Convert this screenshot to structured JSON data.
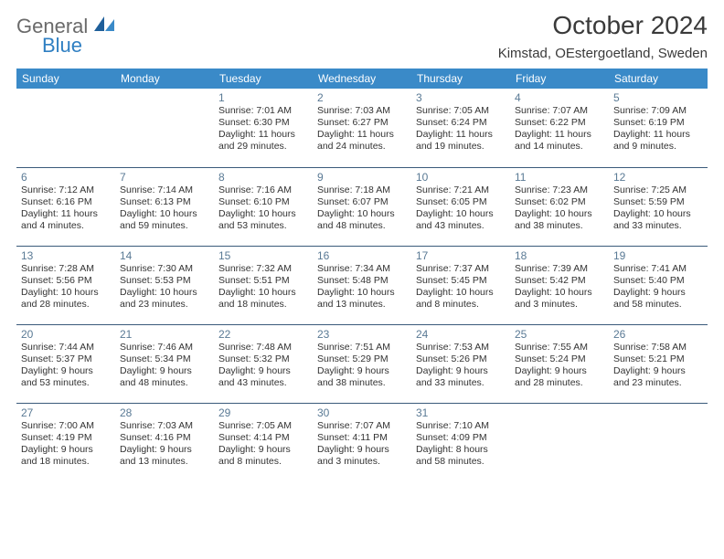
{
  "logo": {
    "word1": "General",
    "word2": "Blue"
  },
  "title": "October 2024",
  "location": "Kimstad, OEstergoetland, Sweden",
  "colors": {
    "header_bg": "#3a8ac8",
    "header_text": "#ffffff",
    "row_border": "#3a5a7a",
    "daynum": "#5a7a95",
    "body_text": "#333333",
    "logo_gray": "#6a6a6a",
    "logo_blue": "#2f7fc2"
  },
  "weekdays": [
    "Sunday",
    "Monday",
    "Tuesday",
    "Wednesday",
    "Thursday",
    "Friday",
    "Saturday"
  ],
  "weeks": [
    [
      null,
      null,
      {
        "d": "1",
        "sr": "Sunrise: 7:01 AM",
        "ss": "Sunset: 6:30 PM",
        "dl1": "Daylight: 11 hours",
        "dl2": "and 29 minutes."
      },
      {
        "d": "2",
        "sr": "Sunrise: 7:03 AM",
        "ss": "Sunset: 6:27 PM",
        "dl1": "Daylight: 11 hours",
        "dl2": "and 24 minutes."
      },
      {
        "d": "3",
        "sr": "Sunrise: 7:05 AM",
        "ss": "Sunset: 6:24 PM",
        "dl1": "Daylight: 11 hours",
        "dl2": "and 19 minutes."
      },
      {
        "d": "4",
        "sr": "Sunrise: 7:07 AM",
        "ss": "Sunset: 6:22 PM",
        "dl1": "Daylight: 11 hours",
        "dl2": "and 14 minutes."
      },
      {
        "d": "5",
        "sr": "Sunrise: 7:09 AM",
        "ss": "Sunset: 6:19 PM",
        "dl1": "Daylight: 11 hours",
        "dl2": "and 9 minutes."
      }
    ],
    [
      {
        "d": "6",
        "sr": "Sunrise: 7:12 AM",
        "ss": "Sunset: 6:16 PM",
        "dl1": "Daylight: 11 hours",
        "dl2": "and 4 minutes."
      },
      {
        "d": "7",
        "sr": "Sunrise: 7:14 AM",
        "ss": "Sunset: 6:13 PM",
        "dl1": "Daylight: 10 hours",
        "dl2": "and 59 minutes."
      },
      {
        "d": "8",
        "sr": "Sunrise: 7:16 AM",
        "ss": "Sunset: 6:10 PM",
        "dl1": "Daylight: 10 hours",
        "dl2": "and 53 minutes."
      },
      {
        "d": "9",
        "sr": "Sunrise: 7:18 AM",
        "ss": "Sunset: 6:07 PM",
        "dl1": "Daylight: 10 hours",
        "dl2": "and 48 minutes."
      },
      {
        "d": "10",
        "sr": "Sunrise: 7:21 AM",
        "ss": "Sunset: 6:05 PM",
        "dl1": "Daylight: 10 hours",
        "dl2": "and 43 minutes."
      },
      {
        "d": "11",
        "sr": "Sunrise: 7:23 AM",
        "ss": "Sunset: 6:02 PM",
        "dl1": "Daylight: 10 hours",
        "dl2": "and 38 minutes."
      },
      {
        "d": "12",
        "sr": "Sunrise: 7:25 AM",
        "ss": "Sunset: 5:59 PM",
        "dl1": "Daylight: 10 hours",
        "dl2": "and 33 minutes."
      }
    ],
    [
      {
        "d": "13",
        "sr": "Sunrise: 7:28 AM",
        "ss": "Sunset: 5:56 PM",
        "dl1": "Daylight: 10 hours",
        "dl2": "and 28 minutes."
      },
      {
        "d": "14",
        "sr": "Sunrise: 7:30 AM",
        "ss": "Sunset: 5:53 PM",
        "dl1": "Daylight: 10 hours",
        "dl2": "and 23 minutes."
      },
      {
        "d": "15",
        "sr": "Sunrise: 7:32 AM",
        "ss": "Sunset: 5:51 PM",
        "dl1": "Daylight: 10 hours",
        "dl2": "and 18 minutes."
      },
      {
        "d": "16",
        "sr": "Sunrise: 7:34 AM",
        "ss": "Sunset: 5:48 PM",
        "dl1": "Daylight: 10 hours",
        "dl2": "and 13 minutes."
      },
      {
        "d": "17",
        "sr": "Sunrise: 7:37 AM",
        "ss": "Sunset: 5:45 PM",
        "dl1": "Daylight: 10 hours",
        "dl2": "and 8 minutes."
      },
      {
        "d": "18",
        "sr": "Sunrise: 7:39 AM",
        "ss": "Sunset: 5:42 PM",
        "dl1": "Daylight: 10 hours",
        "dl2": "and 3 minutes."
      },
      {
        "d": "19",
        "sr": "Sunrise: 7:41 AM",
        "ss": "Sunset: 5:40 PM",
        "dl1": "Daylight: 9 hours",
        "dl2": "and 58 minutes."
      }
    ],
    [
      {
        "d": "20",
        "sr": "Sunrise: 7:44 AM",
        "ss": "Sunset: 5:37 PM",
        "dl1": "Daylight: 9 hours",
        "dl2": "and 53 minutes."
      },
      {
        "d": "21",
        "sr": "Sunrise: 7:46 AM",
        "ss": "Sunset: 5:34 PM",
        "dl1": "Daylight: 9 hours",
        "dl2": "and 48 minutes."
      },
      {
        "d": "22",
        "sr": "Sunrise: 7:48 AM",
        "ss": "Sunset: 5:32 PM",
        "dl1": "Daylight: 9 hours",
        "dl2": "and 43 minutes."
      },
      {
        "d": "23",
        "sr": "Sunrise: 7:51 AM",
        "ss": "Sunset: 5:29 PM",
        "dl1": "Daylight: 9 hours",
        "dl2": "and 38 minutes."
      },
      {
        "d": "24",
        "sr": "Sunrise: 7:53 AM",
        "ss": "Sunset: 5:26 PM",
        "dl1": "Daylight: 9 hours",
        "dl2": "and 33 minutes."
      },
      {
        "d": "25",
        "sr": "Sunrise: 7:55 AM",
        "ss": "Sunset: 5:24 PM",
        "dl1": "Daylight: 9 hours",
        "dl2": "and 28 minutes."
      },
      {
        "d": "26",
        "sr": "Sunrise: 7:58 AM",
        "ss": "Sunset: 5:21 PM",
        "dl1": "Daylight: 9 hours",
        "dl2": "and 23 minutes."
      }
    ],
    [
      {
        "d": "27",
        "sr": "Sunrise: 7:00 AM",
        "ss": "Sunset: 4:19 PM",
        "dl1": "Daylight: 9 hours",
        "dl2": "and 18 minutes."
      },
      {
        "d": "28",
        "sr": "Sunrise: 7:03 AM",
        "ss": "Sunset: 4:16 PM",
        "dl1": "Daylight: 9 hours",
        "dl2": "and 13 minutes."
      },
      {
        "d": "29",
        "sr": "Sunrise: 7:05 AM",
        "ss": "Sunset: 4:14 PM",
        "dl1": "Daylight: 9 hours",
        "dl2": "and 8 minutes."
      },
      {
        "d": "30",
        "sr": "Sunrise: 7:07 AM",
        "ss": "Sunset: 4:11 PM",
        "dl1": "Daylight: 9 hours",
        "dl2": "and 3 minutes."
      },
      {
        "d": "31",
        "sr": "Sunrise: 7:10 AM",
        "ss": "Sunset: 4:09 PM",
        "dl1": "Daylight: 8 hours",
        "dl2": "and 58 minutes."
      },
      null,
      null
    ]
  ]
}
